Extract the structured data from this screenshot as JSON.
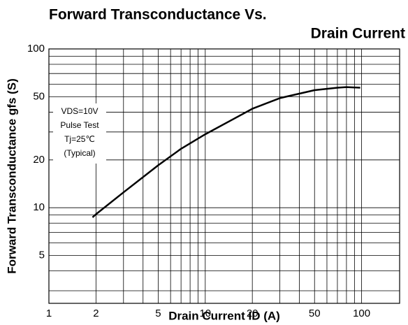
{
  "chart_data": {
    "type": "line",
    "title": [
      "Forward Transconductance Vs.",
      "Drain Current"
    ],
    "xlabel": "Drain Current ID (A)",
    "ylabel": "Forward Transconductance gfs (S)",
    "annotation": [
      "VDS=10V",
      "Pulse Test",
      "Tj=25℃",
      "(Typical)"
    ],
    "xscale": "log",
    "yscale": "log",
    "grid": true,
    "xlim": [
      1,
      175
    ],
    "ylim": [
      2.5,
      100
    ],
    "xticks": [
      1,
      2,
      5,
      10,
      20,
      50,
      100
    ],
    "yticks": [
      5,
      10,
      20,
      50,
      100
    ],
    "xgrid": [
      1,
      2,
      3,
      4,
      5,
      6,
      7,
      8,
      9,
      10,
      20,
      30,
      40,
      50,
      60,
      70,
      80,
      90,
      100
    ],
    "ygrid": [
      3,
      4,
      5,
      6,
      7,
      8,
      9,
      10,
      20,
      30,
      40,
      50,
      60,
      70,
      80,
      90,
      100
    ],
    "series": [
      {
        "color": "#000000",
        "x": [
          1.9,
          2,
          3,
          5,
          7,
          10,
          15,
          20,
          30,
          50,
          70,
          80,
          98
        ],
        "values": [
          8.7,
          9.1,
          12.5,
          18.5,
          23.5,
          29,
          36,
          42,
          49,
          55,
          57,
          57.5,
          57
        ]
      }
    ]
  }
}
